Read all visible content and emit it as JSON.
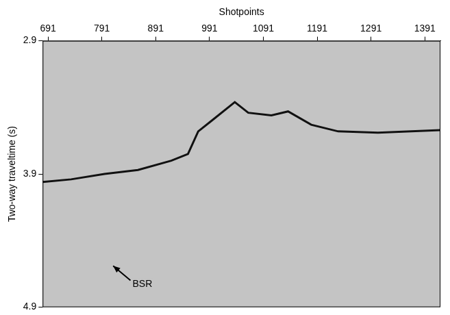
{
  "chart_data": {
    "type": "line",
    "x_label": "Shotpoints",
    "y_label": "Two-way traveltime (s)",
    "x": [
      681,
      734,
      796,
      858,
      920,
      951,
      970,
      995,
      1038,
      1063,
      1106,
      1137,
      1180,
      1230,
      1304,
      1420
    ],
    "values": [
      3.96,
      3.94,
      3.9,
      3.87,
      3.8,
      3.75,
      3.58,
      3.5,
      3.36,
      3.44,
      3.46,
      3.43,
      3.53,
      3.58,
      3.59,
      3.57
    ],
    "color": "#111111",
    "xlim": [
      681,
      1420
    ],
    "xticks": [
      691,
      791,
      891,
      991,
      1091,
      1191,
      1291,
      1391
    ],
    "ylim": [
      2.9,
      4.9
    ],
    "yticks": [
      2.9,
      3.9,
      4.9
    ],
    "grid": false,
    "annotations": [
      {
        "text": "BSR",
        "x": 848,
        "y": 4.73,
        "arrow_x": 812,
        "arrow_y": 4.59
      }
    ]
  }
}
